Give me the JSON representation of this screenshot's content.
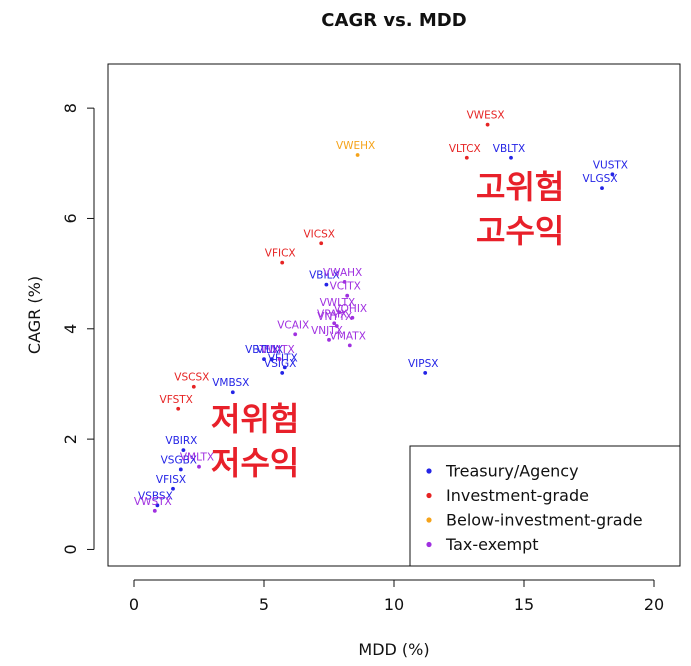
{
  "chart_data": {
    "type": "scatter",
    "title": "CAGR vs. MDD",
    "xlabel": "MDD (%)",
    "ylabel": "CAGR (%)",
    "xlim": [
      -1,
      21
    ],
    "ylim": [
      -0.3,
      8.8
    ],
    "xticks": [
      0,
      5,
      10,
      15,
      20
    ],
    "yticks": [
      0,
      2,
      4,
      6,
      8
    ],
    "grid": false,
    "legend_position": "bottom-right",
    "series": [
      {
        "name": "Treasury/Agency",
        "color": "#2424e6",
        "points": [
          {
            "label": "VBLTX",
            "x": 14.5,
            "y": 7.1
          },
          {
            "label": "VUSTX",
            "x": 18.4,
            "y": 6.8
          },
          {
            "label": "VLGSX",
            "x": 18.0,
            "y": 6.55
          },
          {
            "label": "VBILX",
            "x": 7.4,
            "y": 4.8
          },
          {
            "label": "VFIIX",
            "x": 5.3,
            "y": 3.45
          },
          {
            "label": "VBTLX",
            "x": 5.0,
            "y": 3.45
          },
          {
            "label": "VFITX",
            "x": 5.8,
            "y": 3.3
          },
          {
            "label": "VSIGX",
            "x": 5.7,
            "y": 3.2
          },
          {
            "label": "VIPSX",
            "x": 11.2,
            "y": 3.2
          },
          {
            "label": "VMBSX",
            "x": 3.8,
            "y": 2.85
          },
          {
            "label": "VBIRX",
            "x": 1.9,
            "y": 1.8
          },
          {
            "label": "VSGBX",
            "x": 1.8,
            "y": 1.45
          },
          {
            "label": "VFISX",
            "x": 1.5,
            "y": 1.1
          },
          {
            "label": "VSBSX",
            "x": 0.9,
            "y": 0.8
          }
        ]
      },
      {
        "name": "Investment-grade",
        "color": "#e62424",
        "points": [
          {
            "label": "VWESX",
            "x": 13.6,
            "y": 7.7
          },
          {
            "label": "VLTCX",
            "x": 12.8,
            "y": 7.1
          },
          {
            "label": "VICSX",
            "x": 7.2,
            "y": 5.55
          },
          {
            "label": "VFICX",
            "x": 5.7,
            "y": 5.2
          },
          {
            "label": "VSCSX",
            "x": 2.3,
            "y": 2.95
          },
          {
            "label": "VFSTX",
            "x": 1.7,
            "y": 2.55
          }
        ]
      },
      {
        "name": "Below-investment-grade",
        "color": "#f5a31a",
        "points": [
          {
            "label": "VWEHX",
            "x": 8.6,
            "y": 7.15
          }
        ]
      },
      {
        "name": "Tax-exempt",
        "color": "#a030e0",
        "points": [
          {
            "label": "VWAHX",
            "x": 8.1,
            "y": 4.85
          },
          {
            "label": "VCITX",
            "x": 8.2,
            "y": 4.6
          },
          {
            "label": "VWLTX",
            "x": 7.9,
            "y": 4.3
          },
          {
            "label": "VOHIX",
            "x": 8.4,
            "y": 4.2
          },
          {
            "label": "VPAIX",
            "x": 7.7,
            "y": 4.1
          },
          {
            "label": "VNYTX",
            "x": 7.8,
            "y": 4.05
          },
          {
            "label": "VCAIX",
            "x": 6.2,
            "y": 3.9
          },
          {
            "label": "VNJTX",
            "x": 7.5,
            "y": 3.8
          },
          {
            "label": "VMATX",
            "x": 8.3,
            "y": 3.7
          },
          {
            "label": "VWITX",
            "x": 5.6,
            "y": 3.45
          },
          {
            "label": "VMLTX",
            "x": 2.5,
            "y": 1.5
          },
          {
            "label": "VWSTX",
            "x": 0.8,
            "y": 0.7
          }
        ]
      }
    ]
  },
  "annotations": {
    "high_risk_line1": "고위험",
    "high_risk_line2": "고수익",
    "low_risk_line1": "저위험",
    "low_risk_line2": "저수익"
  }
}
